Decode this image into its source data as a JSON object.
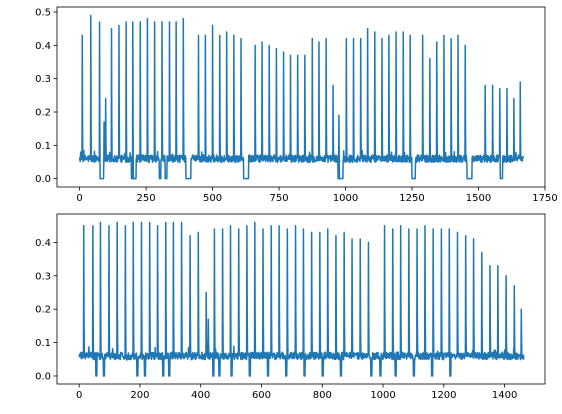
{
  "chart_data": [
    {
      "type": "line",
      "title": "",
      "xlabel": "",
      "ylabel": "",
      "xlim": [
        -85,
        1750
      ],
      "ylim": [
        -0.025,
        0.515
      ],
      "xticks": [
        0,
        250,
        500,
        750,
        1000,
        1250,
        1500,
        1750
      ],
      "yticks": [
        0.0,
        0.1,
        0.2,
        0.3,
        0.4,
        0.5
      ],
      "ytick_labels": [
        "0.0",
        "0.1",
        "0.2",
        "0.3",
        "0.4",
        "0.5"
      ],
      "grid": false,
      "color": "#1f77b4",
      "baseline": 0.06,
      "n_points": 1670,
      "spikes": [
        {
          "x": 10,
          "y": 0.43
        },
        {
          "x": 42,
          "y": 0.49
        },
        {
          "x": 75,
          "y": 0.47
        },
        {
          "x": 92,
          "y": 0.17
        },
        {
          "x": 98,
          "y": 0.24
        },
        {
          "x": 120,
          "y": 0.45
        },
        {
          "x": 148,
          "y": 0.46
        },
        {
          "x": 175,
          "y": 0.47
        },
        {
          "x": 200,
          "y": 0.47
        },
        {
          "x": 228,
          "y": 0.47
        },
        {
          "x": 255,
          "y": 0.48
        },
        {
          "x": 282,
          "y": 0.47
        },
        {
          "x": 310,
          "y": 0.47
        },
        {
          "x": 338,
          "y": 0.47
        },
        {
          "x": 363,
          "y": 0.47
        },
        {
          "x": 390,
          "y": 0.48
        },
        {
          "x": 447,
          "y": 0.43
        },
        {
          "x": 473,
          "y": 0.43
        },
        {
          "x": 500,
          "y": 0.46
        },
        {
          "x": 527,
          "y": 0.43
        },
        {
          "x": 553,
          "y": 0.44
        },
        {
          "x": 580,
          "y": 0.43
        },
        {
          "x": 607,
          "y": 0.42
        },
        {
          "x": 660,
          "y": 0.4
        },
        {
          "x": 686,
          "y": 0.41
        },
        {
          "x": 713,
          "y": 0.4
        },
        {
          "x": 740,
          "y": 0.39
        },
        {
          "x": 767,
          "y": 0.38
        },
        {
          "x": 793,
          "y": 0.37
        },
        {
          "x": 820,
          "y": 0.37
        },
        {
          "x": 847,
          "y": 0.37
        },
        {
          "x": 875,
          "y": 0.42
        },
        {
          "x": 900,
          "y": 0.41
        },
        {
          "x": 927,
          "y": 0.42
        },
        {
          "x": 953,
          "y": 0.28
        },
        {
          "x": 975,
          "y": 0.19
        },
        {
          "x": 1003,
          "y": 0.42
        },
        {
          "x": 1030,
          "y": 0.42
        },
        {
          "x": 1057,
          "y": 0.42
        },
        {
          "x": 1083,
          "y": 0.45
        },
        {
          "x": 1110,
          "y": 0.44
        },
        {
          "x": 1137,
          "y": 0.42
        },
        {
          "x": 1163,
          "y": 0.43
        },
        {
          "x": 1190,
          "y": 0.44
        },
        {
          "x": 1217,
          "y": 0.44
        },
        {
          "x": 1243,
          "y": 0.43
        },
        {
          "x": 1290,
          "y": 0.43
        },
        {
          "x": 1317,
          "y": 0.36
        },
        {
          "x": 1343,
          "y": 0.41
        },
        {
          "x": 1370,
          "y": 0.43
        },
        {
          "x": 1397,
          "y": 0.42
        },
        {
          "x": 1423,
          "y": 0.43
        },
        {
          "x": 1450,
          "y": 0.4
        },
        {
          "x": 1525,
          "y": 0.28
        },
        {
          "x": 1553,
          "y": 0.28
        },
        {
          "x": 1580,
          "y": 0.27
        },
        {
          "x": 1607,
          "y": 0.27
        },
        {
          "x": 1633,
          "y": 0.24
        },
        {
          "x": 1657,
          "y": 0.29
        }
      ],
      "dropouts": [
        [
          77,
          90
        ],
        [
          195,
          212
        ],
        [
          300,
          305
        ],
        [
          322,
          328
        ],
        [
          400,
          418
        ],
        [
          617,
          635
        ],
        [
          972,
          990
        ],
        [
          1250,
          1262
        ],
        [
          1457,
          1475
        ],
        [
          1580,
          1590
        ]
      ]
    },
    {
      "type": "line",
      "title": "",
      "xlabel": "",
      "ylabel": "",
      "xlim": [
        -73,
        1533
      ],
      "ylim": [
        -0.024,
        0.485
      ],
      "xticks": [
        0,
        200,
        400,
        600,
        800,
        1000,
        1200,
        1400
      ],
      "yticks": [
        0.0,
        0.1,
        0.2,
        0.3,
        0.4
      ],
      "ytick_labels": [
        "0.0",
        "0.1",
        "0.2",
        "0.3",
        "0.4"
      ],
      "grid": false,
      "color": "#1f77b4",
      "baseline": 0.06,
      "n_points": 1465,
      "spikes": [
        {
          "x": 15,
          "y": 0.45
        },
        {
          "x": 45,
          "y": 0.45
        },
        {
          "x": 70,
          "y": 0.46
        },
        {
          "x": 98,
          "y": 0.45
        },
        {
          "x": 125,
          "y": 0.46
        },
        {
          "x": 152,
          "y": 0.45
        },
        {
          "x": 178,
          "y": 0.46
        },
        {
          "x": 205,
          "y": 0.46
        },
        {
          "x": 232,
          "y": 0.46
        },
        {
          "x": 258,
          "y": 0.45
        },
        {
          "x": 285,
          "y": 0.46
        },
        {
          "x": 310,
          "y": 0.46
        },
        {
          "x": 337,
          "y": 0.46
        },
        {
          "x": 365,
          "y": 0.42
        },
        {
          "x": 392,
          "y": 0.43
        },
        {
          "x": 418,
          "y": 0.25
        },
        {
          "x": 425,
          "y": 0.17
        },
        {
          "x": 445,
          "y": 0.44
        },
        {
          "x": 472,
          "y": 0.44
        },
        {
          "x": 498,
          "y": 0.45
        },
        {
          "x": 525,
          "y": 0.44
        },
        {
          "x": 552,
          "y": 0.45
        },
        {
          "x": 578,
          "y": 0.46
        },
        {
          "x": 605,
          "y": 0.44
        },
        {
          "x": 632,
          "y": 0.45
        },
        {
          "x": 658,
          "y": 0.45
        },
        {
          "x": 685,
          "y": 0.44
        },
        {
          "x": 712,
          "y": 0.45
        },
        {
          "x": 738,
          "y": 0.44
        },
        {
          "x": 765,
          "y": 0.43
        },
        {
          "x": 792,
          "y": 0.43
        },
        {
          "x": 818,
          "y": 0.44
        },
        {
          "x": 845,
          "y": 0.42
        },
        {
          "x": 872,
          "y": 0.43
        },
        {
          "x": 898,
          "y": 0.41
        },
        {
          "x": 925,
          "y": 0.41
        },
        {
          "x": 952,
          "y": 0.4
        },
        {
          "x": 1005,
          "y": 0.45
        },
        {
          "x": 1032,
          "y": 0.44
        },
        {
          "x": 1058,
          "y": 0.45
        },
        {
          "x": 1085,
          "y": 0.44
        },
        {
          "x": 1112,
          "y": 0.44
        },
        {
          "x": 1138,
          "y": 0.45
        },
        {
          "x": 1165,
          "y": 0.44
        },
        {
          "x": 1192,
          "y": 0.44
        },
        {
          "x": 1218,
          "y": 0.44
        },
        {
          "x": 1245,
          "y": 0.43
        },
        {
          "x": 1272,
          "y": 0.42
        },
        {
          "x": 1298,
          "y": 0.41
        },
        {
          "x": 1325,
          "y": 0.37
        },
        {
          "x": 1352,
          "y": 0.33
        },
        {
          "x": 1378,
          "y": 0.33
        },
        {
          "x": 1405,
          "y": 0.3
        },
        {
          "x": 1432,
          "y": 0.27
        },
        {
          "x": 1455,
          "y": 0.2
        }
      ],
      "dropouts": [
        [
          55,
          58
        ],
        [
          80,
          83
        ],
        [
          190,
          193
        ],
        [
          215,
          218
        ],
        [
          275,
          278
        ],
        [
          295,
          298
        ],
        [
          440,
          443
        ],
        [
          460,
          463
        ],
        [
          500,
          503
        ],
        [
          560,
          563
        ],
        [
          620,
          623
        ],
        [
          680,
          683
        ],
        [
          740,
          743
        ],
        [
          800,
          803
        ],
        [
          860,
          863
        ],
        [
          960,
          963
        ],
        [
          990,
          993
        ],
        [
          1040,
          1043
        ],
        [
          1100,
          1103
        ],
        [
          1160,
          1163
        ],
        [
          1220,
          1223
        ]
      ]
    }
  ]
}
